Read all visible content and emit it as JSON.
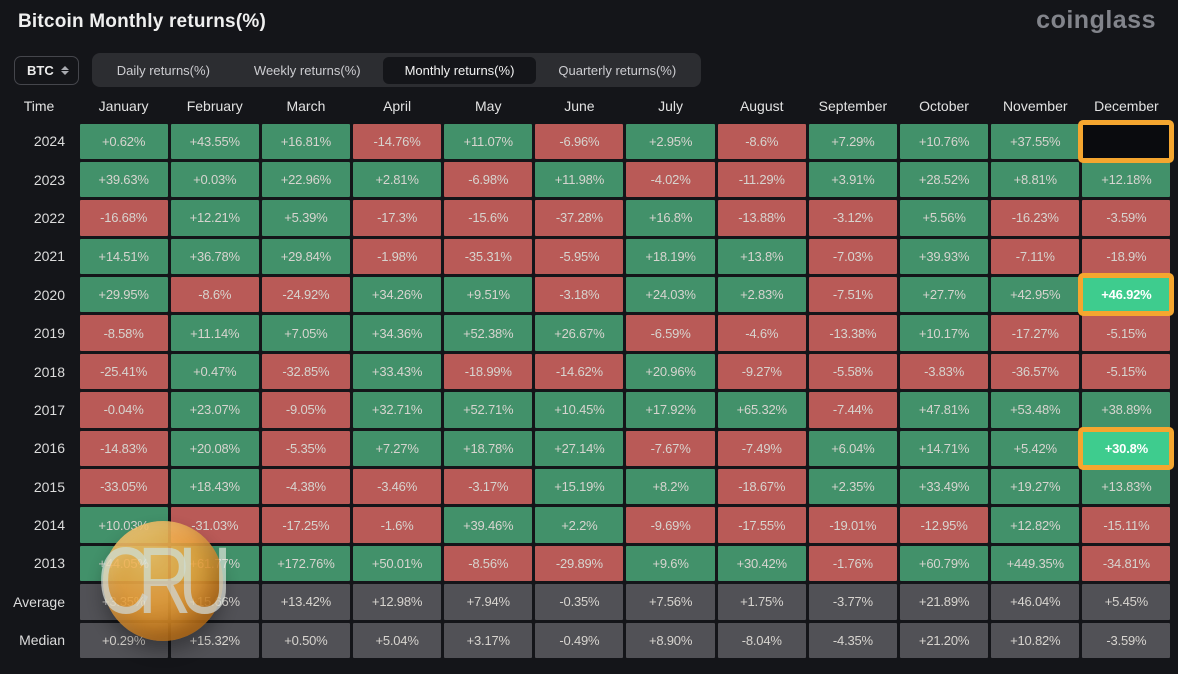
{
  "page": {
    "title": "Bitcoin Monthly returns(%)",
    "brand": "coinglass"
  },
  "controls": {
    "symbol": "BTC",
    "symbol_icon": "up-down-chevron-icon",
    "tabs": [
      {
        "label": "Daily returns(%)",
        "active": false
      },
      {
        "label": "Weekly returns(%)",
        "active": false
      },
      {
        "label": "Monthly returns(%)",
        "active": true
      },
      {
        "label": "Quarterly returns(%)",
        "active": false
      }
    ]
  },
  "watermark": {
    "text": "CRU",
    "shape": "orange-sphere-logo"
  },
  "colors": {
    "positive": "#42916A",
    "negative": "#B95A57",
    "summary": "#515156",
    "highlight_green": "#3ECC8E",
    "highlight_outline": "#F5A62F",
    "background": "#141519"
  },
  "chart_data": {
    "type": "table",
    "title": "Bitcoin Monthly returns(%)",
    "time_header": "Time",
    "columns": [
      "January",
      "February",
      "March",
      "April",
      "May",
      "June",
      "July",
      "August",
      "September",
      "October",
      "November",
      "December"
    ],
    "rows": [
      {
        "label": "2024",
        "cells": [
          [
            "+0.62%",
            "pos"
          ],
          [
            "+43.55%",
            "pos"
          ],
          [
            "+16.81%",
            "pos"
          ],
          [
            "-14.76%",
            "neg"
          ],
          [
            "+11.07%",
            "pos"
          ],
          [
            "-6.96%",
            "neg"
          ],
          [
            "+2.95%",
            "pos"
          ],
          [
            "-8.6%",
            "neg"
          ],
          [
            "+7.29%",
            "pos"
          ],
          [
            "+10.76%",
            "pos"
          ],
          [
            "+37.55%",
            "pos"
          ],
          [
            "",
            "empty-hl"
          ]
        ]
      },
      {
        "label": "2023",
        "cells": [
          [
            "+39.63%",
            "pos"
          ],
          [
            "+0.03%",
            "pos"
          ],
          [
            "+22.96%",
            "pos"
          ],
          [
            "+2.81%",
            "pos"
          ],
          [
            "-6.98%",
            "neg"
          ],
          [
            "+11.98%",
            "pos"
          ],
          [
            "-4.02%",
            "neg"
          ],
          [
            "-11.29%",
            "neg"
          ],
          [
            "+3.91%",
            "pos"
          ],
          [
            "+28.52%",
            "pos"
          ],
          [
            "+8.81%",
            "pos"
          ],
          [
            "+12.18%",
            "pos"
          ]
        ]
      },
      {
        "label": "2022",
        "cells": [
          [
            "-16.68%",
            "neg"
          ],
          [
            "+12.21%",
            "pos"
          ],
          [
            "+5.39%",
            "pos"
          ],
          [
            "-17.3%",
            "neg"
          ],
          [
            "-15.6%",
            "neg"
          ],
          [
            "-37.28%",
            "neg"
          ],
          [
            "+16.8%",
            "pos"
          ],
          [
            "-13.88%",
            "neg"
          ],
          [
            "-3.12%",
            "neg"
          ],
          [
            "+5.56%",
            "pos"
          ],
          [
            "-16.23%",
            "neg"
          ],
          [
            "-3.59%",
            "neg"
          ]
        ]
      },
      {
        "label": "2021",
        "cells": [
          [
            "+14.51%",
            "pos"
          ],
          [
            "+36.78%",
            "pos"
          ],
          [
            "+29.84%",
            "pos"
          ],
          [
            "-1.98%",
            "neg"
          ],
          [
            "-35.31%",
            "neg"
          ],
          [
            "-5.95%",
            "neg"
          ],
          [
            "+18.19%",
            "pos"
          ],
          [
            "+13.8%",
            "pos"
          ],
          [
            "-7.03%",
            "neg"
          ],
          [
            "+39.93%",
            "pos"
          ],
          [
            "-7.11%",
            "neg"
          ],
          [
            "-18.9%",
            "neg"
          ]
        ]
      },
      {
        "label": "2020",
        "cells": [
          [
            "+29.95%",
            "pos"
          ],
          [
            "-8.6%",
            "neg"
          ],
          [
            "-24.92%",
            "neg"
          ],
          [
            "+34.26%",
            "pos"
          ],
          [
            "+9.51%",
            "pos"
          ],
          [
            "-3.18%",
            "neg"
          ],
          [
            "+24.03%",
            "pos"
          ],
          [
            "+2.83%",
            "pos"
          ],
          [
            "-7.51%",
            "neg"
          ],
          [
            "+27.7%",
            "pos"
          ],
          [
            "+42.95%",
            "pos"
          ],
          [
            "+46.92%",
            "pos-hl"
          ]
        ]
      },
      {
        "label": "2019",
        "cells": [
          [
            "-8.58%",
            "neg"
          ],
          [
            "+11.14%",
            "pos"
          ],
          [
            "+7.05%",
            "pos"
          ],
          [
            "+34.36%",
            "pos"
          ],
          [
            "+52.38%",
            "pos"
          ],
          [
            "+26.67%",
            "pos"
          ],
          [
            "-6.59%",
            "neg"
          ],
          [
            "-4.6%",
            "neg"
          ],
          [
            "-13.38%",
            "neg"
          ],
          [
            "+10.17%",
            "pos"
          ],
          [
            "-17.27%",
            "neg"
          ],
          [
            "-5.15%",
            "neg"
          ]
        ]
      },
      {
        "label": "2018",
        "cells": [
          [
            "-25.41%",
            "neg"
          ],
          [
            "+0.47%",
            "pos"
          ],
          [
            "-32.85%",
            "neg"
          ],
          [
            "+33.43%",
            "pos"
          ],
          [
            "-18.99%",
            "neg"
          ],
          [
            "-14.62%",
            "neg"
          ],
          [
            "+20.96%",
            "pos"
          ],
          [
            "-9.27%",
            "neg"
          ],
          [
            "-5.58%",
            "neg"
          ],
          [
            "-3.83%",
            "neg"
          ],
          [
            "-36.57%",
            "neg"
          ],
          [
            "-5.15%",
            "neg"
          ]
        ]
      },
      {
        "label": "2017",
        "cells": [
          [
            "-0.04%",
            "neg"
          ],
          [
            "+23.07%",
            "pos"
          ],
          [
            "-9.05%",
            "neg"
          ],
          [
            "+32.71%",
            "pos"
          ],
          [
            "+52.71%",
            "pos"
          ],
          [
            "+10.45%",
            "pos"
          ],
          [
            "+17.92%",
            "pos"
          ],
          [
            "+65.32%",
            "pos"
          ],
          [
            "-7.44%",
            "neg"
          ],
          [
            "+47.81%",
            "pos"
          ],
          [
            "+53.48%",
            "pos"
          ],
          [
            "+38.89%",
            "pos"
          ]
        ]
      },
      {
        "label": "2016",
        "cells": [
          [
            "-14.83%",
            "neg"
          ],
          [
            "+20.08%",
            "pos"
          ],
          [
            "-5.35%",
            "neg"
          ],
          [
            "+7.27%",
            "pos"
          ],
          [
            "+18.78%",
            "pos"
          ],
          [
            "+27.14%",
            "pos"
          ],
          [
            "-7.67%",
            "neg"
          ],
          [
            "-7.49%",
            "neg"
          ],
          [
            "+6.04%",
            "pos"
          ],
          [
            "+14.71%",
            "pos"
          ],
          [
            "+5.42%",
            "pos"
          ],
          [
            "+30.8%",
            "pos-hl"
          ]
        ]
      },
      {
        "label": "2015",
        "cells": [
          [
            "-33.05%",
            "neg"
          ],
          [
            "+18.43%",
            "pos"
          ],
          [
            "-4.38%",
            "neg"
          ],
          [
            "-3.46%",
            "neg"
          ],
          [
            "-3.17%",
            "neg"
          ],
          [
            "+15.19%",
            "pos"
          ],
          [
            "+8.2%",
            "pos"
          ],
          [
            "-18.67%",
            "neg"
          ],
          [
            "+2.35%",
            "pos"
          ],
          [
            "+33.49%",
            "pos"
          ],
          [
            "+19.27%",
            "pos"
          ],
          [
            "+13.83%",
            "pos"
          ]
        ]
      },
      {
        "label": "2014",
        "cells": [
          [
            "+10.03%",
            "pos"
          ],
          [
            "-31.03%",
            "neg"
          ],
          [
            "-17.25%",
            "neg"
          ],
          [
            "-1.6%",
            "neg"
          ],
          [
            "+39.46%",
            "pos"
          ],
          [
            "+2.2%",
            "pos"
          ],
          [
            "-9.69%",
            "neg"
          ],
          [
            "-17.55%",
            "neg"
          ],
          [
            "-19.01%",
            "neg"
          ],
          [
            "-12.95%",
            "neg"
          ],
          [
            "+12.82%",
            "pos"
          ],
          [
            "-15.11%",
            "neg"
          ]
        ]
      },
      {
        "label": "2013",
        "cells": [
          [
            "+44.05%",
            "pos"
          ],
          [
            "+61.77%",
            "pos"
          ],
          [
            "+172.76%",
            "pos"
          ],
          [
            "+50.01%",
            "pos"
          ],
          [
            "-8.56%",
            "neg"
          ],
          [
            "-29.89%",
            "neg"
          ],
          [
            "+9.6%",
            "pos"
          ],
          [
            "+30.42%",
            "pos"
          ],
          [
            "-1.76%",
            "neg"
          ],
          [
            "+60.79%",
            "pos"
          ],
          [
            "+449.35%",
            "pos"
          ],
          [
            "-34.81%",
            "neg"
          ]
        ]
      },
      {
        "label": "Average",
        "cells": [
          [
            "+3.35%",
            "sum"
          ],
          [
            "+15.66%",
            "sum"
          ],
          [
            "+13.42%",
            "sum"
          ],
          [
            "+12.98%",
            "sum"
          ],
          [
            "+7.94%",
            "sum"
          ],
          [
            "-0.35%",
            "sum"
          ],
          [
            "+7.56%",
            "sum"
          ],
          [
            "+1.75%",
            "sum"
          ],
          [
            "-3.77%",
            "sum"
          ],
          [
            "+21.89%",
            "sum"
          ],
          [
            "+46.04%",
            "sum"
          ],
          [
            "+5.45%",
            "sum"
          ]
        ]
      },
      {
        "label": "Median",
        "cells": [
          [
            "+0.29%",
            "sum"
          ],
          [
            "+15.32%",
            "sum"
          ],
          [
            "+0.50%",
            "sum"
          ],
          [
            "+5.04%",
            "sum"
          ],
          [
            "+3.17%",
            "sum"
          ],
          [
            "-0.49%",
            "sum"
          ],
          [
            "+8.90%",
            "sum"
          ],
          [
            "-8.04%",
            "sum"
          ],
          [
            "-4.35%",
            "sum"
          ],
          [
            "+21.20%",
            "sum"
          ],
          [
            "+10.82%",
            "sum"
          ],
          [
            "-3.59%",
            "sum"
          ]
        ]
      }
    ],
    "highlighted_cells": [
      {
        "row": "2024",
        "month": "December",
        "value": "",
        "note": "empty cell, orange outline"
      },
      {
        "row": "2020",
        "month": "December",
        "value": "+46.92%",
        "note": "bright green, orange outline"
      },
      {
        "row": "2016",
        "month": "December",
        "value": "+30.8%",
        "note": "bright green, orange outline"
      }
    ]
  }
}
